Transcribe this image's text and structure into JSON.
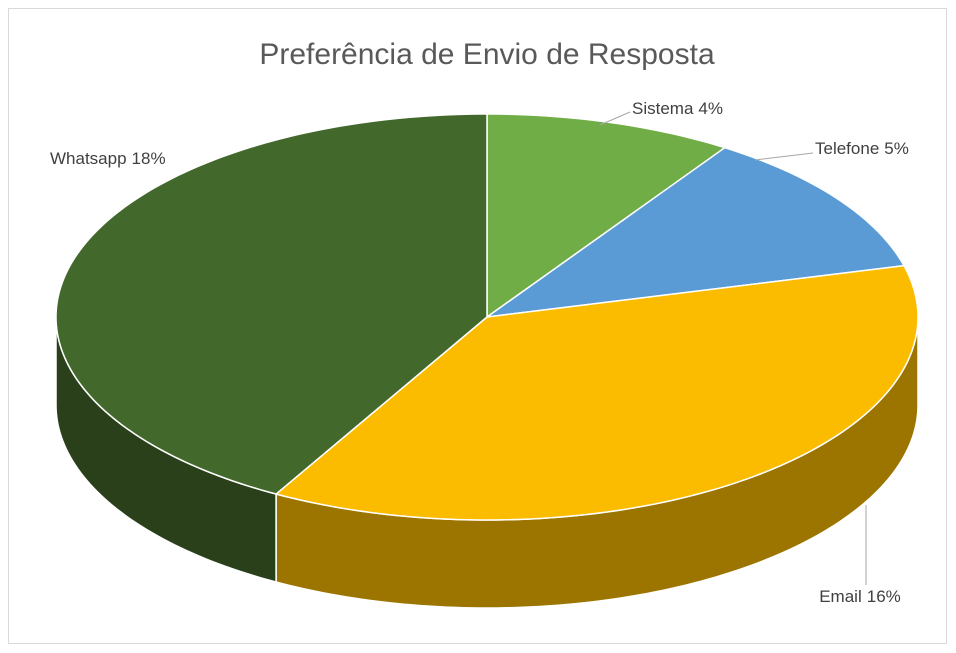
{
  "chart_data": {
    "type": "pie",
    "title": "Preferência de Envio de Resposta",
    "categories": [
      "Sistema",
      "Telefone",
      "Email",
      "Whatsapp"
    ],
    "values": [
      4,
      5,
      16,
      18
    ],
    "value_labels": [
      "4%",
      "5%",
      "16%",
      "18%"
    ],
    "colors": [
      "#70ad47",
      "#5b9bd5",
      "#fbbc00",
      "#43682b"
    ]
  }
}
